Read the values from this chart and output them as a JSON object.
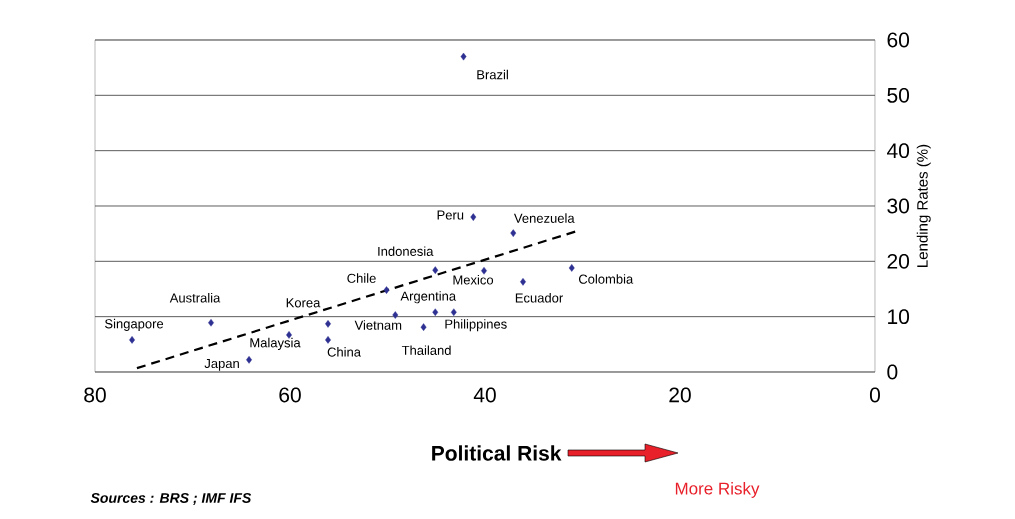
{
  "chart_data": {
    "type": "scatter",
    "xlabel": "Political Risk",
    "ylabel": "Lending Rates (%)",
    "xlim": [
      80,
      0
    ],
    "xticks": [
      80,
      60,
      40,
      20,
      0
    ],
    "ylim": [
      0,
      60
    ],
    "yticks": [
      0,
      10,
      20,
      30,
      40,
      50,
      60
    ],
    "grid": "y",
    "series": [
      {
        "type": "scatter",
        "color": "#2e3192",
        "marker": "diamond",
        "x": [
          76.2,
          68.1,
          64.2,
          60.1,
          56.1,
          56.1,
          50.1,
          49.2,
          45.1,
          45.1,
          43.2,
          46.3,
          40.1,
          41.2,
          37.1,
          36.1,
          31.1,
          42.2
        ],
        "values": [
          5.8,
          8.9,
          2.2,
          6.7,
          8.7,
          5.8,
          14.8,
          10.3,
          18.4,
          10.8,
          10.8,
          8.1,
          18.3,
          28.0,
          25.1,
          16.3,
          18.8,
          57.0
        ]
      },
      {
        "type": "line",
        "color": "#000000",
        "line_style": "dashed",
        "x": [
          75.7,
          30.5
        ],
        "values": [
          0.7,
          25.5
        ]
      }
    ],
    "annotations": [
      {
        "text": "Singapore",
        "x": 76.2,
        "y": 5.8
      },
      {
        "text": "Australia",
        "x": 68.1,
        "y": 8.9
      },
      {
        "text": "Japan",
        "x": 64.2,
        "y": 2.2
      },
      {
        "text": "Malaysia",
        "x": 60.1,
        "y": 6.7
      },
      {
        "text": "Korea",
        "x": 56.1,
        "y": 8.7
      },
      {
        "text": "China",
        "x": 56.1,
        "y": 5.8
      },
      {
        "text": "Chile",
        "x": 50.1,
        "y": 14.8
      },
      {
        "text": "Vietnam",
        "x": 49.2,
        "y": 10.3
      },
      {
        "text": "Indonesia",
        "x": 45.1,
        "y": 18.4
      },
      {
        "text": "Argentina",
        "x": 45.1,
        "y": 10.8
      },
      {
        "text": "Philippines",
        "x": 43.2,
        "y": 10.8
      },
      {
        "text": "Thailand",
        "x": 46.3,
        "y": 8.1
      },
      {
        "text": "Mexico",
        "x": 40.1,
        "y": 18.3
      },
      {
        "text": "Peru",
        "x": 41.2,
        "y": 28.0
      },
      {
        "text": "Venezuela",
        "x": 37.1,
        "y": 25.1
      },
      {
        "text": "Ecuador",
        "x": 36.1,
        "y": 16.3
      },
      {
        "text": "Colombia",
        "x": 31.1,
        "y": 18.8
      },
      {
        "text": "Brazil",
        "x": 42.2,
        "y": 57.0
      },
      "More Risky",
      "Sources : BRS ; IMF IFS"
    ]
  }
}
